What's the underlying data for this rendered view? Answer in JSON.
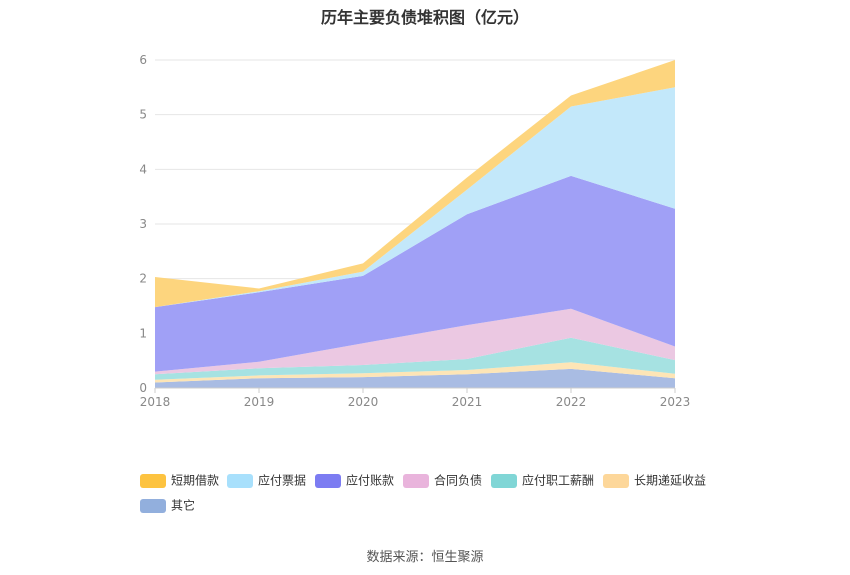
{
  "chart_data": {
    "type": "area",
    "title": "历年主要负债堆积图（亿元）",
    "categories": [
      "2018",
      "2019",
      "2020",
      "2021",
      "2022",
      "2023"
    ],
    "ylim": [
      0,
      6
    ],
    "yticks": [
      "0",
      "1",
      "2",
      "3",
      "4",
      "5",
      "6"
    ],
    "grid": true,
    "legend_position": "bottom",
    "stacked": true,
    "series": [
      {
        "name": "其它",
        "color": "#a9bce3",
        "values": [
          0.1,
          0.18,
          0.2,
          0.25,
          0.35,
          0.18
        ]
      },
      {
        "name": "长期递延收益",
        "color": "#fde5b6",
        "values": [
          0.05,
          0.05,
          0.07,
          0.08,
          0.12,
          0.08
        ]
      },
      {
        "name": "应付职工薪酬",
        "color": "#a6e2e2",
        "values": [
          0.1,
          0.13,
          0.15,
          0.2,
          0.45,
          0.25
        ]
      },
      {
        "name": "合同负债",
        "color": "#ebc8e2",
        "values": [
          0.05,
          0.12,
          0.4,
          0.62,
          0.53,
          0.25
        ]
      },
      {
        "name": "应付账款",
        "color": "#a0a0f6",
        "values": [
          1.18,
          1.27,
          1.23,
          2.03,
          2.43,
          2.52
        ]
      },
      {
        "name": "应付票据",
        "color": "#c3e8fa",
        "values": [
          0.0,
          0.02,
          0.08,
          0.45,
          1.27,
          2.22
        ]
      },
      {
        "name": "短期借款",
        "color": "#fdd57e",
        "values": [
          0.55,
          0.05,
          0.15,
          0.22,
          0.2,
          0.5
        ]
      }
    ]
  },
  "legend": {
    "items": [
      {
        "label": "短期借款",
        "color": "#fdc340"
      },
      {
        "label": "应付票据",
        "color": "#a8e0fc"
      },
      {
        "label": "应付账款",
        "color": "#7c7cf2"
      },
      {
        "label": "合同负债",
        "color": "#e9b4dc"
      },
      {
        "label": "应付职工薪酬",
        "color": "#80d6d6"
      },
      {
        "label": "长期递延收益",
        "color": "#fdd79a"
      },
      {
        "label": "其它",
        "color": "#92afdd"
      }
    ]
  },
  "source_text": "数据来源：恒生聚源"
}
